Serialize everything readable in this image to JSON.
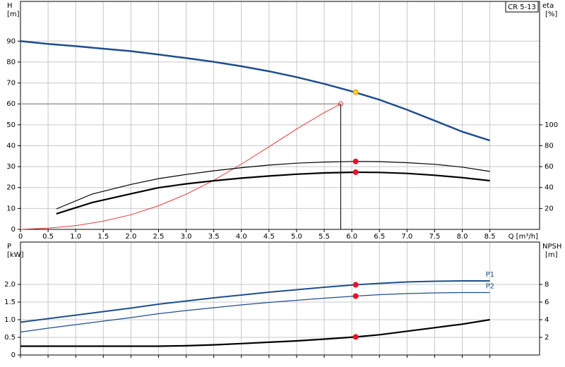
{
  "chart_data": [
    {
      "type": "line",
      "title": "CR 5-13",
      "ylabel": "H",
      "yunit": "[m]",
      "y2label": "eta",
      "y2unit": "[%]",
      "xlabel": "Q [m³/h]",
      "xlim": [
        0,
        9.4
      ],
      "ylim": [
        0,
        109
      ],
      "y2lim": [
        0,
        218
      ],
      "grid": true,
      "xticklabels": true,
      "xticks": [
        0,
        0.5,
        {
          "value": 1,
          "label": "1.0"
        },
        1.5,
        {
          "value": 2,
          "label": "2.0"
        },
        2.5,
        {
          "value": 3,
          "label": "3.0"
        },
        3.5,
        {
          "value": 4,
          "label": "4.0"
        },
        4.5,
        {
          "value": 5,
          "label": "5.0"
        },
        5.5,
        {
          "value": 6,
          "label": "6.0"
        },
        6.5,
        {
          "value": 7,
          "label": "7.0"
        },
        7.5,
        {
          "value": 8,
          "label": "8.0"
        },
        8.5
      ],
      "yticks": [
        0,
        10,
        20,
        30,
        40,
        50,
        60,
        70,
        80,
        90
      ],
      "y2ticks": [
        20,
        40,
        60,
        80,
        100
      ],
      "series": [
        {
          "color": "#b0b0b0",
          "width": 2,
          "x": [
            0,
            5.8
          ],
          "values": [
            60,
            60
          ]
        },
        {
          "color": "#000000",
          "width": 1,
          "x": [
            5.8,
            5.8
          ],
          "values": [
            0,
            60
          ]
        },
        {
          "color": "#e03a3a",
          "width": 1,
          "x": [
            0,
            0.5,
            1,
            1.5,
            2,
            2.5,
            3,
            3.5,
            4,
            4.5,
            5,
            5.5,
            5.8
          ],
          "values": [
            0,
            0.6,
            1.8,
            3.9,
            7,
            11.3,
            16.8,
            23.5,
            31.2,
            39.5,
            48,
            55.8,
            60
          ]
        },
        {
          "color": "#1f4e8c",
          "width": 2.5,
          "x": [
            0,
            0.5,
            1,
            1.5,
            2,
            2.5,
            3,
            3.5,
            4,
            4.5,
            5,
            5.5,
            6,
            6.5,
            7,
            7.5,
            8,
            8.5
          ],
          "values": [
            90,
            88.7,
            87.6,
            86.4,
            85.2,
            83.6,
            81.9,
            80.1,
            78,
            75.6,
            72.8,
            69.6,
            66,
            62,
            57.2,
            52,
            46.7,
            42.5
          ]
        },
        {
          "color": "#000000",
          "width": 1.2,
          "axis": "y2",
          "x": [
            0.65,
            1.3,
            2,
            2.5,
            3,
            3.5,
            4,
            4.5,
            5,
            5.5,
            6.07,
            6.5,
            7,
            7.5,
            8,
            8.5
          ],
          "values": [
            19.6,
            33.8,
            43,
            48.5,
            52.5,
            56,
            59,
            61.5,
            63.3,
            64.4,
            65,
            64.8,
            63.8,
            62.2,
            59.5,
            55.4
          ]
        },
        {
          "color": "#000000",
          "width": 2.2,
          "axis": "y2",
          "x": [
            0.65,
            1.3,
            2,
            2.5,
            3,
            3.5,
            4,
            4.5,
            5,
            5.5,
            6.07,
            6.5,
            7,
            7.5,
            8,
            8.5
          ],
          "values": [
            14.9,
            25.7,
            34,
            39.9,
            43.5,
            46.5,
            49,
            51,
            52.8,
            54,
            54.7,
            54.5,
            53.5,
            51.8,
            49.5,
            46.6
          ]
        },
        {
          "color": "#e03a3a",
          "marker": true,
          "hollow": true,
          "x": [
            5.8
          ],
          "values": [
            60
          ]
        },
        {
          "color": "#e8102a",
          "marker": true,
          "axis": "y2",
          "x": [
            6.07,
            6.07
          ],
          "values": [
            65,
            54.7
          ]
        },
        {
          "color": "#ffd21f",
          "edge": "#e08a00",
          "marker": true,
          "x": [
            6.07
          ],
          "values": [
            65.6
          ]
        }
      ]
    },
    {
      "type": "line",
      "ylabel": "P",
      "yunit": "[kW]",
      "y2label": "NPSH",
      "y2unit": "[m]",
      "xlim": [
        0,
        9.4
      ],
      "ylim": [
        0,
        3.2
      ],
      "y2lim": [
        0,
        12.8
      ],
      "grid": true,
      "xticklabels": false,
      "xticks": [
        0,
        0.5,
        1,
        1.5,
        2,
        2.5,
        3,
        3.5,
        4,
        4.5,
        5,
        5.5,
        6,
        6.5,
        7,
        7.5,
        8,
        8.5
      ],
      "yticks": [
        0,
        0.5,
        {
          "value": 1,
          "label": "1.0"
        },
        1.5,
        {
          "value": 2,
          "label": "2.0"
        }
      ],
      "y2ticks": [
        2,
        4,
        6,
        8
      ],
      "series": [
        {
          "name": "P1",
          "color": "#1f4e8c",
          "width": 2,
          "x": [
            0,
            0.5,
            1,
            1.5,
            2,
            2.5,
            3,
            3.5,
            4,
            4.5,
            5,
            5.5,
            6.07,
            6.5,
            7,
            7.5,
            8,
            8.5
          ],
          "values": [
            0.93,
            1.03,
            1.13,
            1.23,
            1.33,
            1.44,
            1.53,
            1.62,
            1.7,
            1.78,
            1.85,
            1.92,
            1.99,
            2.03,
            2.07,
            2.09,
            2.1,
            2.1
          ]
        },
        {
          "name": "P2",
          "color": "#1f4e8c",
          "width": 1.2,
          "x": [
            0,
            0.5,
            1,
            1.5,
            2,
            2.5,
            3,
            3.5,
            4,
            4.5,
            5,
            5.5,
            6.07,
            6.5,
            7,
            7.5,
            8,
            8.5
          ],
          "values": [
            0.65,
            0.76,
            0.86,
            0.96,
            1.06,
            1.17,
            1.26,
            1.34,
            1.42,
            1.49,
            1.55,
            1.61,
            1.67,
            1.71,
            1.74,
            1.76,
            1.77,
            1.77
          ]
        },
        {
          "color": "#000000",
          "width": 2.2,
          "axis": "y2",
          "x": [
            0,
            2.5,
            3,
            3.5,
            4,
            4.5,
            5,
            5.5,
            6.07,
            6.5,
            7,
            7.5,
            8,
            8.5
          ],
          "values": [
            1.0,
            1.0,
            1.05,
            1.15,
            1.3,
            1.45,
            1.6,
            1.8,
            2.05,
            2.3,
            2.7,
            3.1,
            3.5,
            4.0
          ]
        },
        {
          "color": "#e8102a",
          "marker": true,
          "x": [
            6.07,
            6.07
          ],
          "values": [
            1.99,
            1.67
          ]
        },
        {
          "color": "#e8102a",
          "marker": true,
          "axis": "y2",
          "x": [
            6.07
          ],
          "values": [
            2.05
          ]
        }
      ]
    }
  ]
}
